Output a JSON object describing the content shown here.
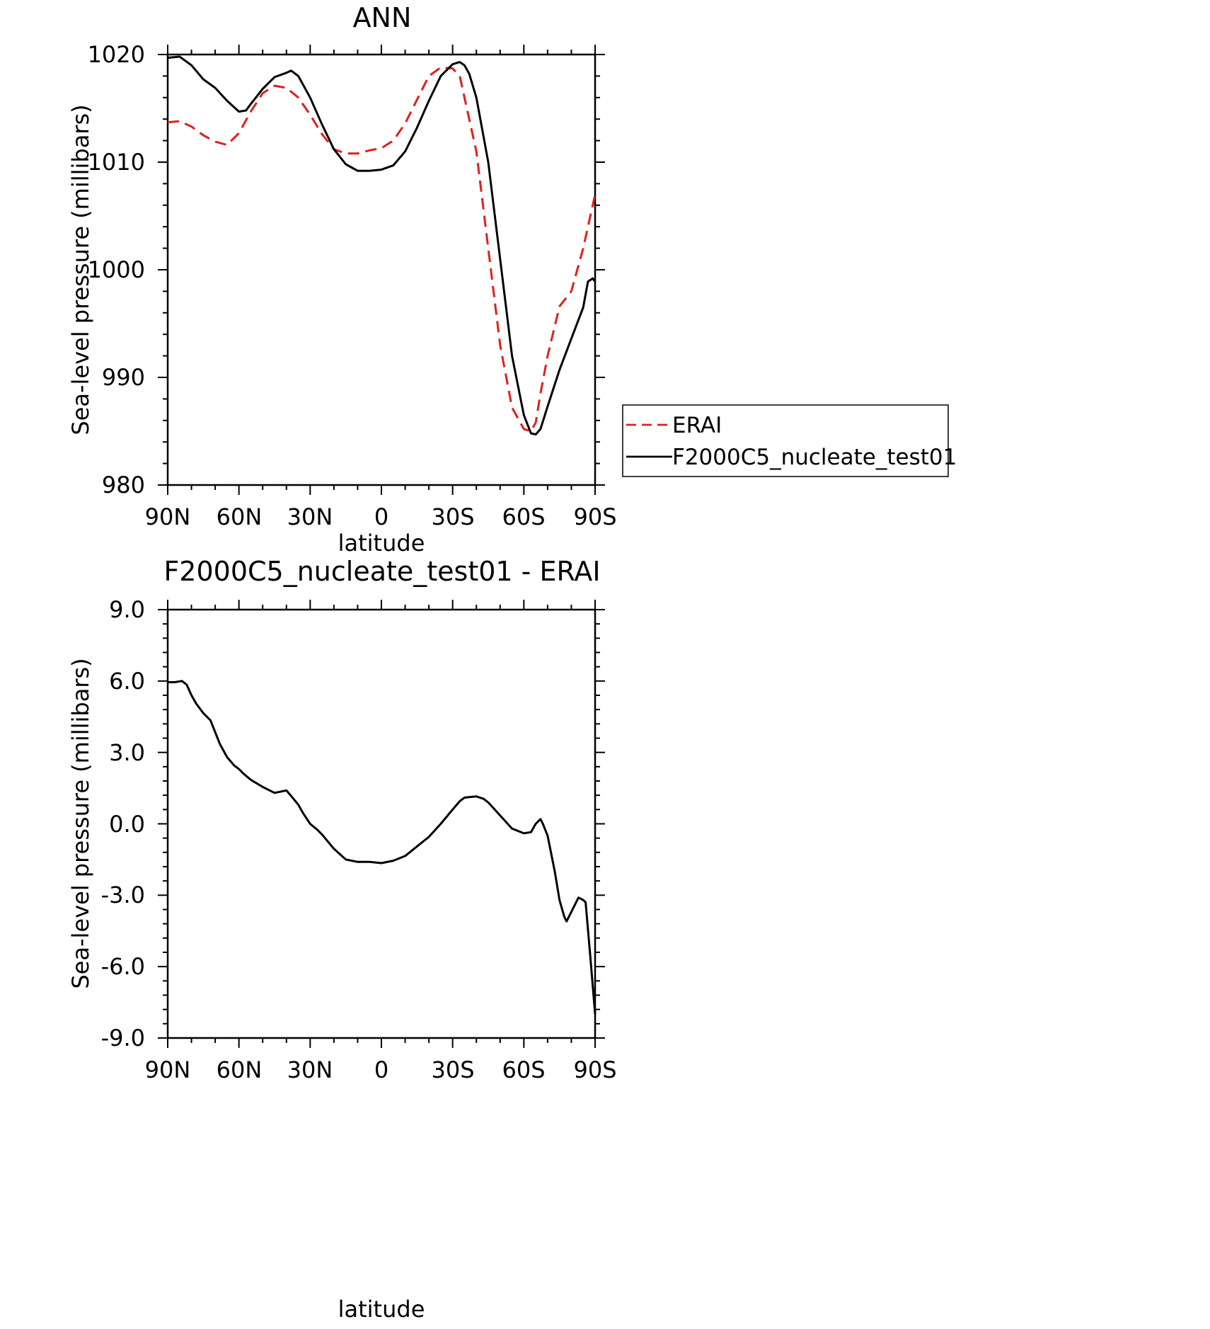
{
  "chart_data": [
    {
      "type": "line",
      "title": "ANN",
      "xlabel": "latitude",
      "ylabel": "Sea-level pressure (millibars)",
      "xlim": [
        90,
        -90
      ],
      "ylim": [
        980,
        1020
      ],
      "x_ticks": [
        90,
        60,
        30,
        0,
        -30,
        -60,
        -90
      ],
      "x_tick_labels": [
        "90N",
        "60N",
        "30N",
        "0",
        "30S",
        "60S",
        "90S"
      ],
      "y_ticks": [
        980,
        990,
        1000,
        1010,
        1020
      ],
      "y_tick_labels": [
        "980",
        "990",
        "1000",
        "1010",
        "1020"
      ],
      "legend": "right",
      "grid": false,
      "series": [
        {
          "name": "ERAI",
          "color": "#e0201b",
          "dash": "dashed",
          "x": [
            90,
            85,
            80,
            75,
            70,
            65,
            60,
            55,
            50,
            45,
            40,
            35,
            30,
            25,
            20,
            15,
            10,
            5,
            0,
            -5,
            -10,
            -15,
            -20,
            -25,
            -30,
            -33,
            -35,
            -40,
            -45,
            -50,
            -55,
            -60,
            -63,
            -65,
            -67,
            -70,
            -75,
            -80,
            -85,
            -90
          ],
          "y": [
            1013.7,
            1013.8,
            1013.3,
            1012.5,
            1011.9,
            1011.6,
            1012.7,
            1014.7,
            1016.4,
            1017.1,
            1016.9,
            1016.0,
            1014.4,
            1012.6,
            1011.2,
            1010.8,
            1010.8,
            1011.1,
            1011.3,
            1012.0,
            1013.6,
            1015.8,
            1018.0,
            1018.8,
            1018.7,
            1018.0,
            1016.0,
            1011.0,
            1002.0,
            993.0,
            987.2,
            985.2,
            985.0,
            985.8,
            988.5,
            992.0,
            996.6,
            998.0,
            1002.0,
            1007.0
          ]
        },
        {
          "name": "F2000C5_nucleate_test01",
          "color": "#000000",
          "dash": "solid",
          "x": [
            90,
            85,
            80,
            75,
            70,
            65,
            60,
            57,
            55,
            50,
            45,
            40,
            38,
            35,
            30,
            25,
            20,
            15,
            10,
            5,
            0,
            -5,
            -10,
            -15,
            -20,
            -25,
            -30,
            -33,
            -35,
            -37,
            -40,
            -45,
            -50,
            -55,
            -60,
            -63,
            -65,
            -67,
            -70,
            -75,
            -80,
            -85,
            -87,
            -89,
            -90
          ],
          "y": [
            1019.7,
            1019.8,
            1019.0,
            1017.7,
            1016.9,
            1015.7,
            1014.7,
            1014.8,
            1015.4,
            1016.8,
            1017.9,
            1018.3,
            1018.5,
            1018.0,
            1016.0,
            1013.5,
            1011.2,
            1009.8,
            1009.2,
            1009.2,
            1009.3,
            1009.7,
            1011.0,
            1013.2,
            1015.7,
            1018.0,
            1019.1,
            1019.3,
            1019.0,
            1018.2,
            1016.0,
            1010.0,
            1001.0,
            992.0,
            986.5,
            984.8,
            984.7,
            985.2,
            987.3,
            990.7,
            993.6,
            996.5,
            998.9,
            999.2,
            998.9
          ]
        }
      ]
    },
    {
      "type": "line",
      "title": "F2000C5_nucleate_test01 - ERAI",
      "xlabel": "latitude",
      "ylabel": "Sea-level pressure (millibars)",
      "xlim": [
        90,
        -90
      ],
      "ylim": [
        -9,
        9
      ],
      "x_ticks": [
        90,
        60,
        30,
        0,
        -30,
        -60,
        -90
      ],
      "x_tick_labels": [
        "90N",
        "60N",
        "30N",
        "0",
        "30S",
        "60S",
        "90S"
      ],
      "y_ticks": [
        -9,
        -6,
        -3,
        0,
        3,
        6,
        9
      ],
      "y_tick_labels": [
        "-9.0",
        "-6.0",
        "-3.0",
        "0.0",
        "3.0",
        "6.0",
        "9.0"
      ],
      "grid": false,
      "series": [
        {
          "color": "#000000",
          "dash": "solid",
          "x": [
            90,
            87,
            84,
            82,
            80,
            78,
            75,
            72,
            70,
            68,
            65,
            62,
            60,
            58,
            55,
            50,
            45,
            40,
            37,
            35,
            33,
            30,
            27,
            25,
            20,
            15,
            10,
            5,
            0,
            -5,
            -10,
            -15,
            -20,
            -25,
            -30,
            -33,
            -35,
            -40,
            -43,
            -45,
            -50,
            -55,
            -60,
            -63,
            -65,
            -67,
            -68,
            -70,
            -73,
            -75,
            -77,
            -78,
            -80,
            -83,
            -85,
            -86,
            -88,
            -90
          ],
          "y": [
            5.95,
            5.95,
            6.0,
            5.85,
            5.4,
            5.05,
            4.65,
            4.35,
            3.85,
            3.35,
            2.8,
            2.45,
            2.3,
            2.1,
            1.85,
            1.55,
            1.3,
            1.4,
            1.05,
            0.8,
            0.45,
            0.0,
            -0.25,
            -0.45,
            -1.05,
            -1.5,
            -1.6,
            -1.6,
            -1.65,
            -1.55,
            -1.35,
            -0.95,
            -0.55,
            0.0,
            0.6,
            0.95,
            1.1,
            1.15,
            1.05,
            0.9,
            0.35,
            -0.2,
            -0.4,
            -0.35,
            0.0,
            0.2,
            0.0,
            -0.5,
            -2.0,
            -3.2,
            -3.9,
            -4.1,
            -3.7,
            -3.1,
            -3.2,
            -3.3,
            -5.6,
            -8.0
          ]
        }
      ]
    }
  ],
  "legend": {
    "items": [
      {
        "label": "ERAI",
        "color": "#e0201b",
        "dash": "dashed"
      },
      {
        "label": "F2000C5_nucleate_test01",
        "color": "#000000",
        "dash": "solid"
      }
    ]
  }
}
